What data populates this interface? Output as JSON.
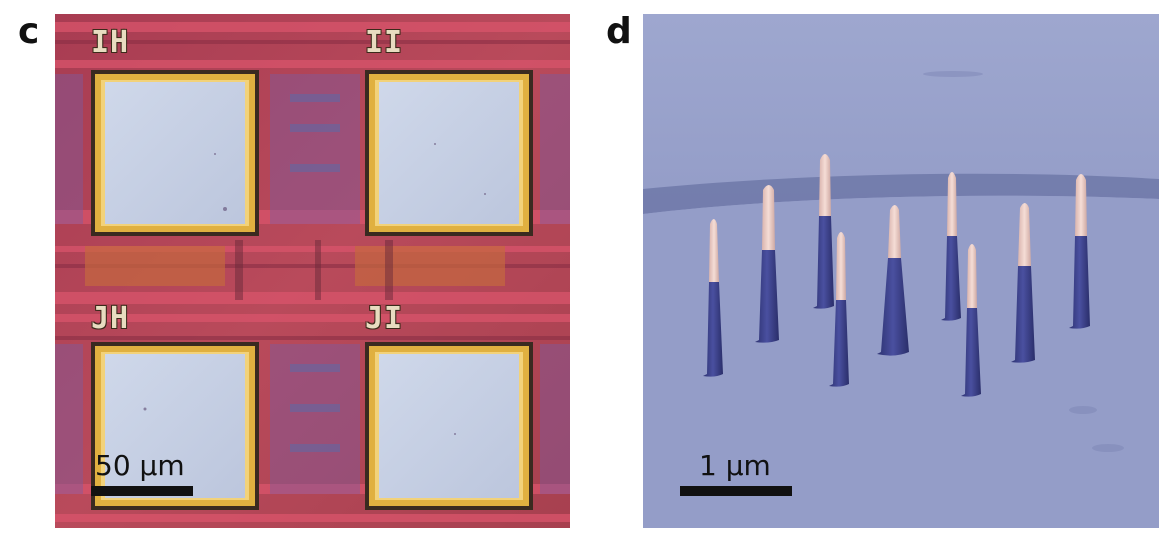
{
  "panels": {
    "c": {
      "letter": "c",
      "pad_labels": [
        "IH",
        "II",
        "JH",
        "JI"
      ],
      "scalebar_label": "50 µm",
      "colors": {
        "substrate": "#b8455a",
        "pad": "#c9d3e6",
        "pad_border": "#e0b040"
      }
    },
    "d": {
      "letter": "d",
      "scalebar_label": "1 µm",
      "colors": {
        "background": "#8f98c4",
        "pillar": "#3a3f88",
        "pillar_tip": "#e9c9c4"
      }
    }
  }
}
